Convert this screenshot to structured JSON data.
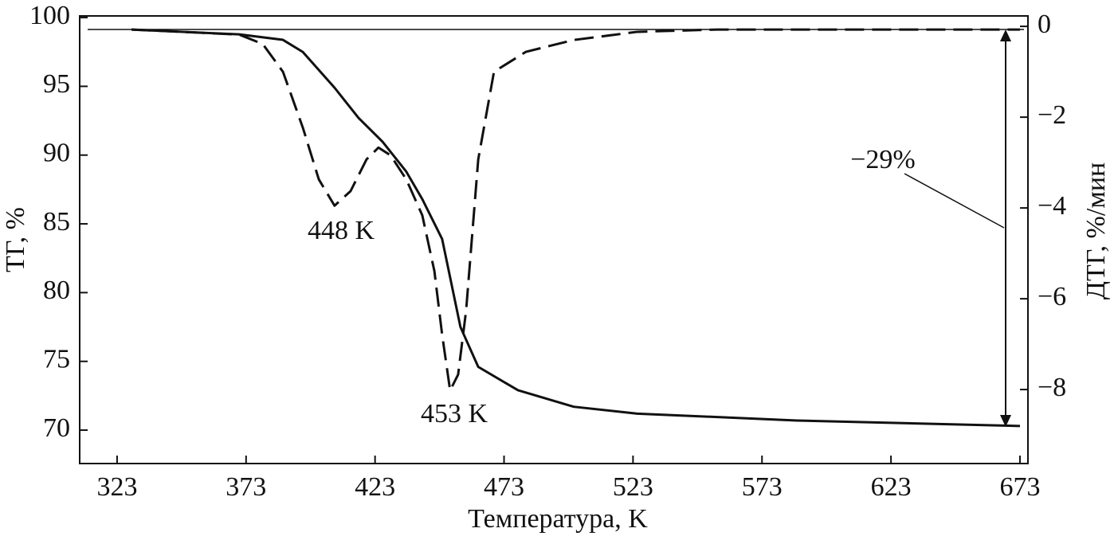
{
  "chart_data": {
    "type": "line",
    "xlabel": "Температура, K",
    "ylabel": "ТГ, %",
    "y2label": "ДТГ, %/мин",
    "xlim": [
      308.5,
      676.1
    ],
    "xticks": [
      323,
      373,
      423,
      473,
      523,
      573,
      623,
      673
    ],
    "ylim": [
      67.57,
      100.12
    ],
    "yticks": [
      70,
      75,
      80,
      85,
      90,
      95,
      100
    ],
    "y2lim": [
      -9.63,
      0.23
    ],
    "y2ticks": [
      {
        "value": -8,
        "label": "−8"
      },
      {
        "value": -6,
        "label": "−6"
      },
      {
        "value": -4,
        "label": "−4"
      },
      {
        "value": -2,
        "label": "−2"
      },
      0
    ],
    "series": [
      {
        "color": "#111111",
        "dash": "solid",
        "x": [
          328.6,
          370.3,
          387.3,
          395,
          407.3,
          416.6,
          425.9,
          435.1,
          441.3,
          449,
          456.1,
          463,
          478.4,
          500,
          524.7,
          586.5,
          673
        ],
        "values": [
          99.13,
          98.78,
          98.38,
          97.5,
          94.9,
          92.7,
          90.97,
          88.8,
          86.8,
          83.9,
          77.5,
          74.6,
          72.9,
          71.7,
          71.2,
          70.7,
          70.3
        ]
      },
      {
        "color": "#111111",
        "dash": "dashed",
        "axis": "y2",
        "x": [
          328.6,
          370.3,
          379.5,
          387.3,
          395,
          401.2,
          407.3,
          413.5,
          419.7,
          424.3,
          429,
          435.1,
          441.3,
          446,
          449,
          452.1,
          455.2,
          458.3,
          463,
          469.1,
          481.5,
          500,
          524.7,
          555.6,
          673
        ],
        "values": [
          -0.07,
          -0.18,
          -0.39,
          -1.0,
          -2.23,
          -3.37,
          -3.95,
          -3.63,
          -2.93,
          -2.67,
          -2.84,
          -3.37,
          -4.16,
          -5.39,
          -6.79,
          -8.02,
          -7.67,
          -6.26,
          -2.93,
          -1.0,
          -0.56,
          -0.3,
          -0.12,
          -0.07,
          -0.07
        ]
      }
    ],
    "annotations": [
      "448 K",
      "453 K",
      "−29%"
    ]
  }
}
